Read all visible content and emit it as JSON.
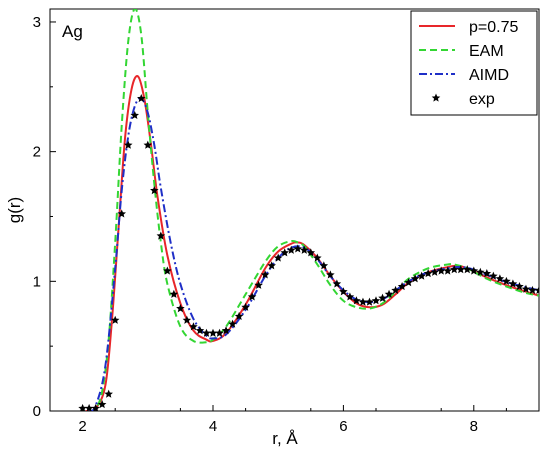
{
  "chart_data": {
    "type": "line",
    "title": "",
    "annotation": "Ag",
    "xlabel": "r, Å",
    "ylabel": "g(r)",
    "xlim": [
      1.5,
      9.0
    ],
    "ylim": [
      0,
      3.1
    ],
    "xticks": [
      2,
      4,
      6,
      8
    ],
    "yticks": [
      0,
      1,
      2,
      3
    ],
    "grid": false,
    "legend_position": "top-right",
    "series": [
      {
        "name": "p=0.75",
        "style": "solid",
        "color": "#e8262a",
        "x": [
          2.05,
          2.2,
          2.35,
          2.45,
          2.55,
          2.65,
          2.75,
          2.85,
          2.95,
          3.05,
          3.15,
          3.3,
          3.5,
          3.7,
          3.9,
          4.0,
          4.2,
          4.5,
          4.8,
          5.0,
          5.2,
          5.3,
          5.4,
          5.6,
          5.8,
          6.0,
          6.2,
          6.4,
          6.6,
          6.8,
          7.0,
          7.3,
          7.6,
          7.75,
          7.9,
          8.2,
          8.5,
          8.8,
          9.0
        ],
        "y": [
          0.0,
          0.02,
          0.2,
          0.7,
          1.4,
          2.1,
          2.48,
          2.58,
          2.4,
          2.05,
          1.65,
          1.2,
          0.83,
          0.62,
          0.55,
          0.54,
          0.6,
          0.82,
          1.1,
          1.23,
          1.29,
          1.3,
          1.28,
          1.18,
          1.04,
          0.92,
          0.83,
          0.8,
          0.82,
          0.9,
          0.99,
          1.07,
          1.11,
          1.12,
          1.1,
          1.03,
          0.97,
          0.92,
          0.89
        ]
      },
      {
        "name": "EAM",
        "style": "dashed",
        "color": "#33d633",
        "x": [
          2.1,
          2.2,
          2.3,
          2.4,
          2.5,
          2.6,
          2.7,
          2.8,
          2.9,
          3.0,
          3.1,
          3.2,
          3.3,
          3.5,
          3.7,
          3.9,
          4.0,
          4.2,
          4.5,
          4.8,
          5.0,
          5.2,
          5.3,
          5.4,
          5.6,
          5.8,
          6.0,
          6.2,
          6.4,
          6.6,
          6.8,
          7.0,
          7.3,
          7.6,
          7.7,
          7.9,
          8.2,
          8.5,
          8.8,
          9.0
        ],
        "y": [
          0.0,
          0.02,
          0.15,
          0.55,
          1.3,
          2.2,
          2.85,
          3.1,
          2.9,
          2.3,
          1.75,
          1.3,
          0.98,
          0.65,
          0.54,
          0.53,
          0.55,
          0.65,
          0.9,
          1.15,
          1.27,
          1.31,
          1.3,
          1.27,
          1.13,
          0.97,
          0.85,
          0.8,
          0.79,
          0.83,
          0.92,
          1.02,
          1.1,
          1.13,
          1.13,
          1.1,
          1.02,
          0.96,
          0.91,
          0.89
        ]
      },
      {
        "name": "AIMD",
        "style": "dash-dot",
        "color": "#1f2fc7",
        "x": [
          2.1,
          2.2,
          2.35,
          2.5,
          2.6,
          2.7,
          2.8,
          2.9,
          3.0,
          3.1,
          3.2,
          3.35,
          3.5,
          3.7,
          3.9,
          4.0,
          4.2,
          4.5,
          4.8,
          5.0,
          5.2,
          5.4,
          5.6,
          5.8,
          6.0,
          6.2,
          6.4,
          6.6,
          6.8,
          7.0,
          7.3,
          7.6,
          7.8,
          8.0,
          8.3,
          8.6,
          9.0
        ],
        "y": [
          0.0,
          0.04,
          0.35,
          1.1,
          1.7,
          2.12,
          2.35,
          2.41,
          2.3,
          2.05,
          1.72,
          1.3,
          0.98,
          0.71,
          0.58,
          0.56,
          0.59,
          0.78,
          1.04,
          1.18,
          1.26,
          1.26,
          1.17,
          1.04,
          0.93,
          0.86,
          0.84,
          0.86,
          0.93,
          1.0,
          1.07,
          1.1,
          1.11,
          1.09,
          1.03,
          0.98,
          0.93
        ]
      },
      {
        "name": "exp",
        "style": "markers",
        "color": "#000000",
        "x": [
          2.0,
          2.1,
          2.2,
          2.3,
          2.4,
          2.5,
          2.6,
          2.7,
          2.8,
          2.9,
          3.0,
          3.1,
          3.2,
          3.3,
          3.4,
          3.5,
          3.6,
          3.7,
          3.8,
          3.9,
          4.0,
          4.1,
          4.2,
          4.3,
          4.4,
          4.5,
          4.6,
          4.7,
          4.8,
          4.9,
          5.0,
          5.1,
          5.2,
          5.3,
          5.4,
          5.5,
          5.6,
          5.7,
          5.8,
          5.9,
          6.0,
          6.1,
          6.2,
          6.3,
          6.4,
          6.5,
          6.6,
          6.7,
          6.8,
          6.9,
          7.0,
          7.1,
          7.2,
          7.3,
          7.4,
          7.5,
          7.6,
          7.7,
          7.8,
          7.9,
          8.0,
          8.1,
          8.2,
          8.3,
          8.4,
          8.5,
          8.6,
          8.7,
          8.8,
          8.9,
          9.0
        ],
        "y": [
          0.02,
          0.02,
          0.02,
          0.05,
          0.13,
          0.7,
          1.52,
          2.05,
          2.28,
          2.41,
          2.05,
          1.7,
          1.35,
          1.08,
          0.9,
          0.79,
          0.7,
          0.65,
          0.62,
          0.6,
          0.6,
          0.6,
          0.62,
          0.67,
          0.73,
          0.8,
          0.88,
          0.97,
          1.05,
          1.12,
          1.18,
          1.22,
          1.24,
          1.25,
          1.24,
          1.22,
          1.18,
          1.12,
          1.05,
          0.98,
          0.92,
          0.88,
          0.85,
          0.84,
          0.84,
          0.85,
          0.87,
          0.9,
          0.93,
          0.96,
          0.99,
          1.02,
          1.04,
          1.06,
          1.07,
          1.08,
          1.08,
          1.09,
          1.09,
          1.09,
          1.08,
          1.07,
          1.06,
          1.04,
          1.02,
          1.0,
          0.98,
          0.96,
          0.94,
          0.93,
          0.93
        ]
      }
    ]
  }
}
